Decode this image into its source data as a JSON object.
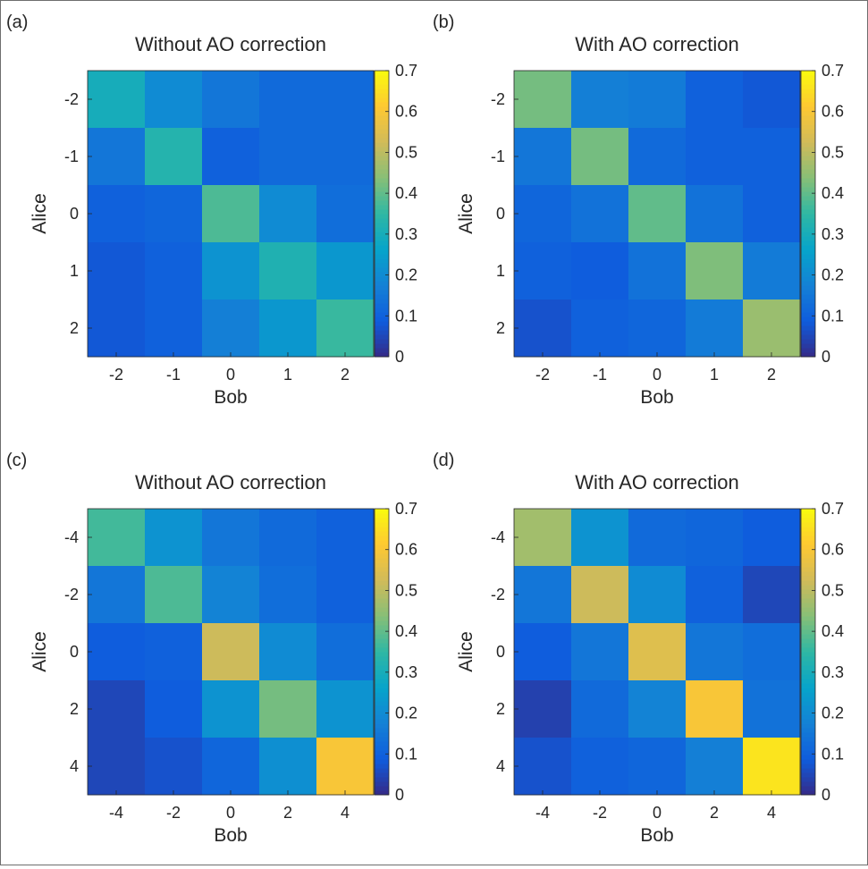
{
  "colormap": {
    "name": "parula",
    "stops": [
      "#352a87",
      "#0f5cdd",
      "#1481d6",
      "#06a4ca",
      "#2eb7a4",
      "#87bf77",
      "#d1bb59",
      "#fec832",
      "#f9fb0e"
    ]
  },
  "chart_data": [
    {
      "type": "heatmap",
      "panel_label": "(a)",
      "title": "Without AO correction",
      "xlabel": "Bob",
      "ylabel": "Alice",
      "x_ticks": [
        "-2",
        "-1",
        "0",
        "1",
        "2"
      ],
      "y_ticks": [
        "-2",
        "-1",
        "0",
        "1",
        "2"
      ],
      "clim": [
        0,
        0.7
      ],
      "colorbar_ticks": [
        "0",
        "0.1",
        "0.2",
        "0.3",
        "0.4",
        "0.5",
        "0.6",
        "0.7"
      ],
      "values": [
        [
          0.3,
          0.2,
          0.15,
          0.12,
          0.12
        ],
        [
          0.15,
          0.33,
          0.1,
          0.12,
          0.12
        ],
        [
          0.1,
          0.11,
          0.38,
          0.2,
          0.13
        ],
        [
          0.08,
          0.1,
          0.22,
          0.32,
          0.23
        ],
        [
          0.08,
          0.1,
          0.17,
          0.23,
          0.36
        ]
      ]
    },
    {
      "type": "heatmap",
      "panel_label": "(b)",
      "title": "With AO correction",
      "xlabel": "Bob",
      "ylabel": "Alice",
      "x_ticks": [
        "-2",
        "-1",
        "0",
        "1",
        "2"
      ],
      "y_ticks": [
        "-2",
        "-1",
        "0",
        "1",
        "2"
      ],
      "clim": [
        0,
        0.7
      ],
      "colorbar_ticks": [
        "0",
        "0.1",
        "0.2",
        "0.3",
        "0.4",
        "0.5",
        "0.6",
        "0.7"
      ],
      "values": [
        [
          0.42,
          0.17,
          0.16,
          0.1,
          0.08
        ],
        [
          0.15,
          0.42,
          0.12,
          0.1,
          0.1
        ],
        [
          0.11,
          0.14,
          0.4,
          0.14,
          0.1
        ],
        [
          0.1,
          0.09,
          0.14,
          0.43,
          0.16
        ],
        [
          0.07,
          0.1,
          0.11,
          0.16,
          0.46
        ]
      ]
    },
    {
      "type": "heatmap",
      "panel_label": "(c)",
      "title": "Without AO correction",
      "xlabel": "Bob",
      "ylabel": "Alice",
      "x_ticks": [
        "-4",
        "-2",
        "0",
        "2",
        "4"
      ],
      "y_ticks": [
        "-4",
        "-2",
        "0",
        "2",
        "4"
      ],
      "clim": [
        0,
        0.7
      ],
      "colorbar_ticks": [
        "0",
        "0.1",
        "0.2",
        "0.3",
        "0.4",
        "0.5",
        "0.6",
        "0.7"
      ],
      "values": [
        [
          0.37,
          0.22,
          0.15,
          0.12,
          0.1
        ],
        [
          0.15,
          0.38,
          0.18,
          0.13,
          0.1
        ],
        [
          0.09,
          0.1,
          0.52,
          0.2,
          0.13
        ],
        [
          0.05,
          0.09,
          0.22,
          0.42,
          0.22
        ],
        [
          0.05,
          0.07,
          0.11,
          0.21,
          0.6
        ]
      ]
    },
    {
      "type": "heatmap",
      "panel_label": "(d)",
      "title": "With AO correction",
      "xlabel": "Bob",
      "ylabel": "Alice",
      "x_ticks": [
        "-4",
        "-2",
        "0",
        "2",
        "4"
      ],
      "y_ticks": [
        "-4",
        "-2",
        "0",
        "2",
        "4"
      ],
      "clim": [
        0,
        0.7
      ],
      "colorbar_ticks": [
        "0",
        "0.1",
        "0.2",
        "0.3",
        "0.4",
        "0.5",
        "0.6",
        "0.7"
      ],
      "values": [
        [
          0.47,
          0.22,
          0.12,
          0.11,
          0.09
        ],
        [
          0.15,
          0.52,
          0.2,
          0.1,
          0.05
        ],
        [
          0.09,
          0.15,
          0.55,
          0.15,
          0.13
        ],
        [
          0.04,
          0.12,
          0.18,
          0.6,
          0.14
        ],
        [
          0.07,
          0.1,
          0.11,
          0.17,
          0.66
        ]
      ]
    }
  ]
}
